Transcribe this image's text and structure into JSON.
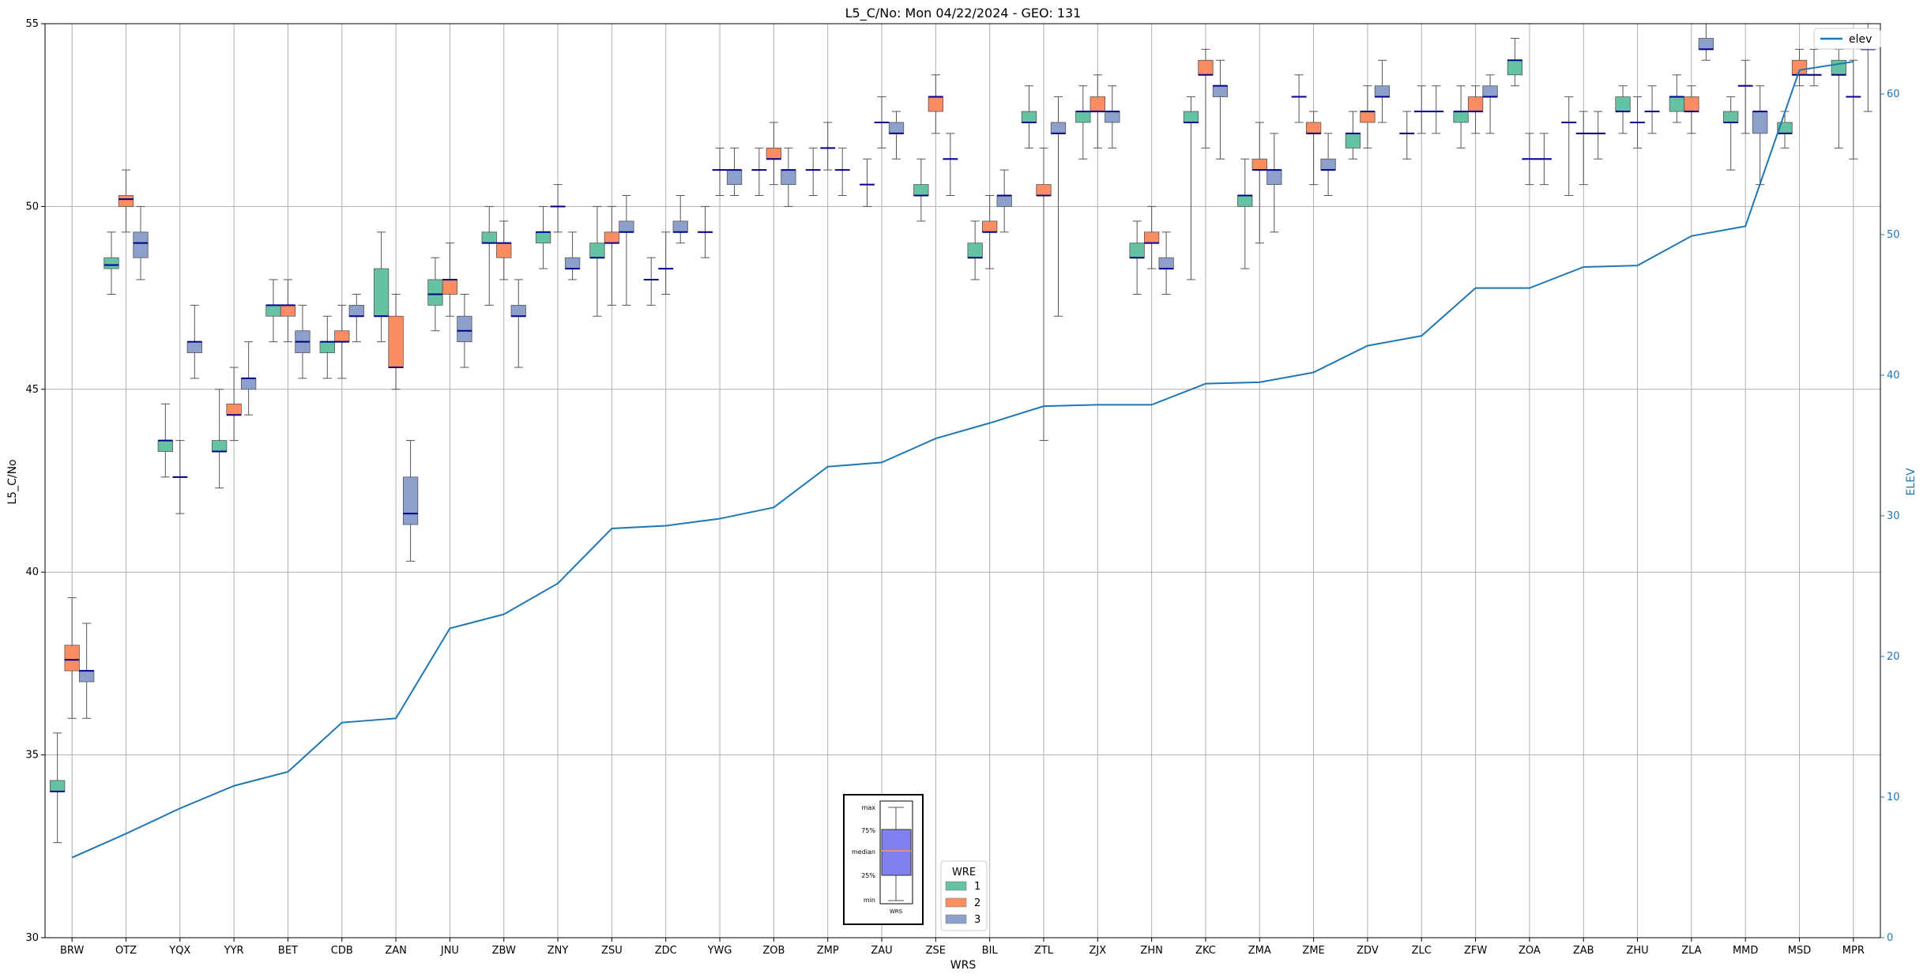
{
  "chart_data": {
    "type": "box",
    "title": "L5_C/No: Mon 04/22/2024 - GEO: 131",
    "xlabel": "WRS",
    "ylabel": "L5_C/No",
    "ylabel_right": "ELEV",
    "ylim": [
      30,
      55
    ],
    "ylim_right": [
      0,
      65
    ],
    "yticks": [
      30,
      35,
      40,
      45,
      50,
      55
    ],
    "yticks_right": [
      0,
      10,
      20,
      30,
      40,
      50,
      60
    ],
    "grid": true,
    "categories": [
      "BRW",
      "OTZ",
      "YQX",
      "YYR",
      "BET",
      "CDB",
      "ZAN",
      "JNU",
      "ZBW",
      "ZNY",
      "ZSU",
      "ZDC",
      "YWG",
      "ZOB",
      "ZMP",
      "ZAU",
      "ZSE",
      "BIL",
      "ZTL",
      "ZJX",
      "ZHN",
      "ZKC",
      "ZMA",
      "ZME",
      "ZDV",
      "ZLC",
      "ZFW",
      "ZOA",
      "ZAB",
      "ZHU",
      "ZLA",
      "MMD",
      "MSD",
      "MPR"
    ],
    "legend": {
      "title": "WRE",
      "placement": "bottom-center",
      "entries": [
        "1",
        "2",
        "3"
      ]
    },
    "colors": {
      "1": "#66c2a5",
      "2": "#fc8d62",
      "3": "#8da0cb",
      "median": "#00008b",
      "elev": "#1f77b4",
      "whisker": "#555555"
    },
    "boxes": [
      {
        "cat": "BRW",
        "wre": 1,
        "min": 32.6,
        "q1": 34.0,
        "median": 34.0,
        "q3": 34.3,
        "max": 35.6
      },
      {
        "cat": "BRW",
        "wre": 2,
        "min": 36.0,
        "q1": 37.3,
        "median": 37.6,
        "q3": 38.0,
        "max": 39.3
      },
      {
        "cat": "BRW",
        "wre": 3,
        "min": 36.0,
        "q1": 37.0,
        "median": 37.3,
        "q3": 37.3,
        "max": 38.6
      },
      {
        "cat": "OTZ",
        "wre": 1,
        "min": 47.6,
        "q1": 48.3,
        "median": 48.4,
        "q3": 48.6,
        "max": 49.3
      },
      {
        "cat": "OTZ",
        "wre": 2,
        "min": 49.3,
        "q1": 50.0,
        "median": 50.2,
        "q3": 50.3,
        "max": 51.0
      },
      {
        "cat": "OTZ",
        "wre": 3,
        "min": 48.0,
        "q1": 48.6,
        "median": 49.0,
        "q3": 49.3,
        "max": 50.0
      },
      {
        "cat": "YQX",
        "wre": 1,
        "min": 42.6,
        "q1": 43.3,
        "median": 43.6,
        "q3": 43.6,
        "max": 44.6
      },
      {
        "cat": "YQX",
        "wre": 2,
        "min": 41.6,
        "q1": 42.6,
        "median": 42.6,
        "q3": 42.6,
        "max": 43.6
      },
      {
        "cat": "YQX",
        "wre": 3,
        "min": 45.3,
        "q1": 46.0,
        "median": 46.3,
        "q3": 46.3,
        "max": 47.3
      },
      {
        "cat": "YYR",
        "wre": 1,
        "min": 42.3,
        "q1": 43.3,
        "median": 43.3,
        "q3": 43.6,
        "max": 45.0
      },
      {
        "cat": "YYR",
        "wre": 2,
        "min": 43.6,
        "q1": 44.3,
        "median": 44.3,
        "q3": 44.6,
        "max": 45.6
      },
      {
        "cat": "YYR",
        "wre": 3,
        "min": 44.3,
        "q1": 45.0,
        "median": 45.3,
        "q3": 45.3,
        "max": 46.3
      },
      {
        "cat": "BET",
        "wre": 1,
        "min": 46.3,
        "q1": 47.0,
        "median": 47.3,
        "q3": 47.3,
        "max": 48.0
      },
      {
        "cat": "BET",
        "wre": 2,
        "min": 46.3,
        "q1": 47.0,
        "median": 47.3,
        "q3": 47.3,
        "max": 48.0
      },
      {
        "cat": "BET",
        "wre": 3,
        "min": 45.3,
        "q1": 46.0,
        "median": 46.3,
        "q3": 46.6,
        "max": 47.3
      },
      {
        "cat": "CDB",
        "wre": 1,
        "min": 45.3,
        "q1": 46.0,
        "median": 46.3,
        "q3": 46.3,
        "max": 47.0
      },
      {
        "cat": "CDB",
        "wre": 2,
        "min": 45.3,
        "q1": 46.3,
        "median": 46.3,
        "q3": 46.6,
        "max": 47.3
      },
      {
        "cat": "CDB",
        "wre": 3,
        "min": 46.3,
        "q1": 47.0,
        "median": 47.0,
        "q3": 47.3,
        "max": 47.6
      },
      {
        "cat": "ZAN",
        "wre": 1,
        "min": 46.3,
        "q1": 47.0,
        "median": 47.0,
        "q3": 48.3,
        "max": 49.3
      },
      {
        "cat": "ZAN",
        "wre": 2,
        "min": 45.0,
        "q1": 45.6,
        "median": 45.6,
        "q3": 47.0,
        "max": 47.6
      },
      {
        "cat": "ZAN",
        "wre": 3,
        "min": 40.3,
        "q1": 41.3,
        "median": 41.6,
        "q3": 42.6,
        "max": 43.6
      },
      {
        "cat": "JNU",
        "wre": 1,
        "min": 46.6,
        "q1": 47.3,
        "median": 47.6,
        "q3": 48.0,
        "max": 48.6
      },
      {
        "cat": "JNU",
        "wre": 2,
        "min": 47.0,
        "q1": 47.6,
        "median": 48.0,
        "q3": 48.0,
        "max": 49.0
      },
      {
        "cat": "JNU",
        "wre": 3,
        "min": 45.6,
        "q1": 46.3,
        "median": 46.6,
        "q3": 47.0,
        "max": 47.6
      },
      {
        "cat": "ZBW",
        "wre": 1,
        "min": 47.3,
        "q1": 49.0,
        "median": 49.0,
        "q3": 49.3,
        "max": 50.0
      },
      {
        "cat": "ZBW",
        "wre": 2,
        "min": 48.0,
        "q1": 48.6,
        "median": 49.0,
        "q3": 49.0,
        "max": 49.6
      },
      {
        "cat": "ZBW",
        "wre": 3,
        "min": 45.6,
        "q1": 47.0,
        "median": 47.0,
        "q3": 47.3,
        "max": 48.0
      },
      {
        "cat": "ZNY",
        "wre": 1,
        "min": 48.3,
        "q1": 49.0,
        "median": 49.3,
        "q3": 49.3,
        "max": 50.0
      },
      {
        "cat": "ZNY",
        "wre": 2,
        "min": 49.3,
        "q1": 50.0,
        "median": 50.0,
        "q3": 50.0,
        "max": 50.6
      },
      {
        "cat": "ZNY",
        "wre": 3,
        "min": 48.0,
        "q1": 48.3,
        "median": 48.3,
        "q3": 48.6,
        "max": 49.3
      },
      {
        "cat": "ZSU",
        "wre": 1,
        "min": 47.0,
        "q1": 48.6,
        "median": 48.6,
        "q3": 49.0,
        "max": 50.0
      },
      {
        "cat": "ZSU",
        "wre": 2,
        "min": 47.3,
        "q1": 49.0,
        "median": 49.0,
        "q3": 49.3,
        "max": 50.0
      },
      {
        "cat": "ZSU",
        "wre": 3,
        "min": 47.3,
        "q1": 49.3,
        "median": 49.3,
        "q3": 49.6,
        "max": 50.3
      },
      {
        "cat": "ZDC",
        "wre": 1,
        "min": 47.3,
        "q1": 48.0,
        "median": 48.0,
        "q3": 48.0,
        "max": 48.6
      },
      {
        "cat": "ZDC",
        "wre": 2,
        "min": 47.6,
        "q1": 48.3,
        "median": 48.3,
        "q3": 48.3,
        "max": 49.3
      },
      {
        "cat": "ZDC",
        "wre": 3,
        "min": 49.0,
        "q1": 49.3,
        "median": 49.3,
        "q3": 49.6,
        "max": 50.3
      },
      {
        "cat": "YWG",
        "wre": 1,
        "min": 48.6,
        "q1": 49.3,
        "median": 49.3,
        "q3": 49.3,
        "max": 50.0
      },
      {
        "cat": "YWG",
        "wre": 2,
        "min": 50.3,
        "q1": 51.0,
        "median": 51.0,
        "q3": 51.0,
        "max": 51.6
      },
      {
        "cat": "YWG",
        "wre": 3,
        "min": 50.3,
        "q1": 50.6,
        "median": 51.0,
        "q3": 51.0,
        "max": 51.6
      },
      {
        "cat": "ZOB",
        "wre": 1,
        "min": 50.3,
        "q1": 51.0,
        "median": 51.0,
        "q3": 51.0,
        "max": 51.6
      },
      {
        "cat": "ZOB",
        "wre": 2,
        "min": 50.6,
        "q1": 51.3,
        "median": 51.3,
        "q3": 51.6,
        "max": 52.3
      },
      {
        "cat": "ZOB",
        "wre": 3,
        "min": 50.0,
        "q1": 50.6,
        "median": 51.0,
        "q3": 51.0,
        "max": 51.6
      },
      {
        "cat": "ZMP",
        "wre": 1,
        "min": 50.3,
        "q1": 51.0,
        "median": 51.0,
        "q3": 51.0,
        "max": 51.6
      },
      {
        "cat": "ZMP",
        "wre": 2,
        "min": 51.0,
        "q1": 51.6,
        "median": 51.6,
        "q3": 51.6,
        "max": 52.3
      },
      {
        "cat": "ZMP",
        "wre": 3,
        "min": 50.3,
        "q1": 51.0,
        "median": 51.0,
        "q3": 51.0,
        "max": 51.6
      },
      {
        "cat": "ZAU",
        "wre": 1,
        "min": 50.0,
        "q1": 50.6,
        "median": 50.6,
        "q3": 50.6,
        "max": 51.3
      },
      {
        "cat": "ZAU",
        "wre": 2,
        "min": 51.6,
        "q1": 52.3,
        "median": 52.3,
        "q3": 52.3,
        "max": 53.0
      },
      {
        "cat": "ZAU",
        "wre": 3,
        "min": 51.3,
        "q1": 52.0,
        "median": 52.0,
        "q3": 52.3,
        "max": 52.6
      },
      {
        "cat": "ZSE",
        "wre": 1,
        "min": 49.6,
        "q1": 50.3,
        "median": 50.3,
        "q3": 50.6,
        "max": 51.3
      },
      {
        "cat": "ZSE",
        "wre": 2,
        "min": 52.0,
        "q1": 52.6,
        "median": 53.0,
        "q3": 53.0,
        "max": 53.6
      },
      {
        "cat": "ZSE",
        "wre": 3,
        "min": 50.3,
        "q1": 51.3,
        "median": 51.3,
        "q3": 51.3,
        "max": 52.0
      },
      {
        "cat": "BIL",
        "wre": 1,
        "min": 48.0,
        "q1": 48.6,
        "median": 48.6,
        "q3": 49.0,
        "max": 49.6
      },
      {
        "cat": "BIL",
        "wre": 2,
        "min": 48.3,
        "q1": 49.3,
        "median": 49.3,
        "q3": 49.6,
        "max": 50.3
      },
      {
        "cat": "BIL",
        "wre": 3,
        "min": 49.3,
        "q1": 50.0,
        "median": 50.3,
        "q3": 50.3,
        "max": 51.0
      },
      {
        "cat": "ZTL",
        "wre": 1,
        "min": 51.6,
        "q1": 52.3,
        "median": 52.3,
        "q3": 52.6,
        "max": 53.3
      },
      {
        "cat": "ZTL",
        "wre": 2,
        "min": 43.6,
        "q1": 50.3,
        "median": 50.3,
        "q3": 50.6,
        "max": 51.6
      },
      {
        "cat": "ZTL",
        "wre": 3,
        "min": 47.0,
        "q1": 52.0,
        "median": 52.0,
        "q3": 52.3,
        "max": 53.0
      },
      {
        "cat": "ZJX",
        "wre": 1,
        "min": 51.3,
        "q1": 52.3,
        "median": 52.6,
        "q3": 52.6,
        "max": 53.3
      },
      {
        "cat": "ZJX",
        "wre": 2,
        "min": 51.6,
        "q1": 52.6,
        "median": 52.6,
        "q3": 53.0,
        "max": 53.6
      },
      {
        "cat": "ZJX",
        "wre": 3,
        "min": 51.6,
        "q1": 52.3,
        "median": 52.6,
        "q3": 52.6,
        "max": 53.3
      },
      {
        "cat": "ZHN",
        "wre": 1,
        "min": 47.6,
        "q1": 48.6,
        "median": 48.6,
        "q3": 49.0,
        "max": 49.6
      },
      {
        "cat": "ZHN",
        "wre": 2,
        "min": 48.3,
        "q1": 49.0,
        "median": 49.0,
        "q3": 49.3,
        "max": 50.0
      },
      {
        "cat": "ZHN",
        "wre": 3,
        "min": 47.6,
        "q1": 48.3,
        "median": 48.3,
        "q3": 48.6,
        "max": 49.3
      },
      {
        "cat": "ZKC",
        "wre": 1,
        "min": 48.0,
        "q1": 52.3,
        "median": 52.3,
        "q3": 52.6,
        "max": 53.0
      },
      {
        "cat": "ZKC",
        "wre": 2,
        "min": 51.6,
        "q1": 53.6,
        "median": 53.6,
        "q3": 54.0,
        "max": 54.3
      },
      {
        "cat": "ZKC",
        "wre": 3,
        "min": 51.3,
        "q1": 53.0,
        "median": 53.3,
        "q3": 53.3,
        "max": 54.0
      },
      {
        "cat": "ZMA",
        "wre": 1,
        "min": 48.3,
        "q1": 50.0,
        "median": 50.3,
        "q3": 50.3,
        "max": 51.3
      },
      {
        "cat": "ZMA",
        "wre": 2,
        "min": 49.0,
        "q1": 51.0,
        "median": 51.0,
        "q3": 51.3,
        "max": 52.3
      },
      {
        "cat": "ZMA",
        "wre": 3,
        "min": 49.3,
        "q1": 50.6,
        "median": 51.0,
        "q3": 51.0,
        "max": 52.0
      },
      {
        "cat": "ZME",
        "wre": 1,
        "min": 52.3,
        "q1": 53.0,
        "median": 53.0,
        "q3": 53.0,
        "max": 53.6
      },
      {
        "cat": "ZME",
        "wre": 2,
        "min": 50.6,
        "q1": 52.0,
        "median": 52.0,
        "q3": 52.3,
        "max": 52.6
      },
      {
        "cat": "ZME",
        "wre": 3,
        "min": 50.3,
        "q1": 51.0,
        "median": 51.0,
        "q3": 51.3,
        "max": 52.0
      },
      {
        "cat": "ZDV",
        "wre": 1,
        "min": 51.3,
        "q1": 51.6,
        "median": 52.0,
        "q3": 52.0,
        "max": 52.6
      },
      {
        "cat": "ZDV",
        "wre": 2,
        "min": 51.6,
        "q1": 52.3,
        "median": 52.6,
        "q3": 52.6,
        "max": 53.3
      },
      {
        "cat": "ZDV",
        "wre": 3,
        "min": 52.3,
        "q1": 53.0,
        "median": 53.0,
        "q3": 53.3,
        "max": 54.0
      },
      {
        "cat": "ZLC",
        "wre": 1,
        "min": 51.3,
        "q1": 52.0,
        "median": 52.0,
        "q3": 52.0,
        "max": 52.6
      },
      {
        "cat": "ZLC",
        "wre": 2,
        "min": 52.0,
        "q1": 52.6,
        "median": 52.6,
        "q3": 52.6,
        "max": 53.3
      },
      {
        "cat": "ZLC",
        "wre": 3,
        "min": 52.0,
        "q1": 52.6,
        "median": 52.6,
        "q3": 52.6,
        "max": 53.3
      },
      {
        "cat": "ZFW",
        "wre": 1,
        "min": 51.6,
        "q1": 52.3,
        "median": 52.6,
        "q3": 52.6,
        "max": 53.3
      },
      {
        "cat": "ZFW",
        "wre": 2,
        "min": 52.0,
        "q1": 52.6,
        "median": 52.6,
        "q3": 53.0,
        "max": 53.3
      },
      {
        "cat": "ZFW",
        "wre": 3,
        "min": 52.0,
        "q1": 53.0,
        "median": 53.0,
        "q3": 53.3,
        "max": 53.6
      },
      {
        "cat": "ZOA",
        "wre": 1,
        "min": 53.3,
        "q1": 53.6,
        "median": 54.0,
        "q3": 54.0,
        "max": 54.6
      },
      {
        "cat": "ZOA",
        "wre": 2,
        "min": 50.6,
        "q1": 51.3,
        "median": 51.3,
        "q3": 51.3,
        "max": 52.0
      },
      {
        "cat": "ZOA",
        "wre": 3,
        "min": 50.6,
        "q1": 51.3,
        "median": 51.3,
        "q3": 51.3,
        "max": 52.0
      },
      {
        "cat": "ZAB",
        "wre": 1,
        "min": 50.3,
        "q1": 52.3,
        "median": 52.3,
        "q3": 52.3,
        "max": 53.0
      },
      {
        "cat": "ZAB",
        "wre": 2,
        "min": 50.6,
        "q1": 52.0,
        "median": 52.0,
        "q3": 52.0,
        "max": 52.6
      },
      {
        "cat": "ZAB",
        "wre": 3,
        "min": 51.3,
        "q1": 52.0,
        "median": 52.0,
        "q3": 52.0,
        "max": 52.6
      },
      {
        "cat": "ZHU",
        "wre": 1,
        "min": 52.0,
        "q1": 52.6,
        "median": 52.6,
        "q3": 53.0,
        "max": 53.3
      },
      {
        "cat": "ZHU",
        "wre": 2,
        "min": 51.6,
        "q1": 52.3,
        "median": 52.3,
        "q3": 52.3,
        "max": 53.0
      },
      {
        "cat": "ZHU",
        "wre": 3,
        "min": 52.0,
        "q1": 52.6,
        "median": 52.6,
        "q3": 52.6,
        "max": 53.3
      },
      {
        "cat": "ZLA",
        "wre": 1,
        "min": 52.3,
        "q1": 52.6,
        "median": 53.0,
        "q3": 53.0,
        "max": 53.6
      },
      {
        "cat": "ZLA",
        "wre": 2,
        "min": 52.0,
        "q1": 52.6,
        "median": 52.6,
        "q3": 53.0,
        "max": 53.3
      },
      {
        "cat": "ZLA",
        "wre": 3,
        "min": 54.0,
        "q1": 54.3,
        "median": 54.3,
        "q3": 54.6,
        "max": 55.0
      },
      {
        "cat": "MMD",
        "wre": 1,
        "min": 51.0,
        "q1": 52.3,
        "median": 52.3,
        "q3": 52.6,
        "max": 53.0
      },
      {
        "cat": "MMD",
        "wre": 2,
        "min": 52.0,
        "q1": 53.3,
        "median": 53.3,
        "q3": 53.3,
        "max": 54.0
      },
      {
        "cat": "MMD",
        "wre": 3,
        "min": 50.6,
        "q1": 52.0,
        "median": 52.6,
        "q3": 52.6,
        "max": 53.3
      },
      {
        "cat": "MSD",
        "wre": 1,
        "min": 51.6,
        "q1": 52.0,
        "median": 52.0,
        "q3": 52.3,
        "max": 52.6
      },
      {
        "cat": "MSD",
        "wre": 2,
        "min": 53.3,
        "q1": 53.6,
        "median": 53.6,
        "q3": 54.0,
        "max": 54.3
      },
      {
        "cat": "MSD",
        "wre": 3,
        "min": 53.3,
        "q1": 53.6,
        "median": 53.6,
        "q3": 53.6,
        "max": 54.3
      },
      {
        "cat": "MPR",
        "wre": 1,
        "min": 51.6,
        "q1": 53.6,
        "median": 53.6,
        "q3": 54.0,
        "max": 54.3
      },
      {
        "cat": "MPR",
        "wre": 2,
        "min": 51.3,
        "q1": 53.0,
        "median": 53.0,
        "q3": 53.0,
        "max": 54.0
      },
      {
        "cat": "MPR",
        "wre": 3,
        "min": 52.6,
        "q1": 54.3,
        "median": 54.3,
        "q3": 54.6,
        "max": 55.0
      }
    ],
    "series": [
      {
        "name": "elev",
        "axis": "right",
        "x": [
          "BRW",
          "OTZ",
          "YQX",
          "YYR",
          "BET",
          "CDB",
          "ZAN",
          "JNU",
          "ZBW",
          "ZNY",
          "ZSU",
          "ZDC",
          "YWG",
          "ZOB",
          "ZMP",
          "ZAU",
          "ZSE",
          "BIL",
          "ZTL",
          "ZJX",
          "ZHN",
          "ZKC",
          "ZMA",
          "ZME",
          "ZDV",
          "ZLC",
          "ZFW",
          "ZOA",
          "ZAB",
          "ZHU",
          "ZLA",
          "MMD",
          "MSD",
          "MPR"
        ],
        "values": [
          5.7,
          7.4,
          9.2,
          10.8,
          11.8,
          15.3,
          15.6,
          22.0,
          23.0,
          25.2,
          29.1,
          29.3,
          29.8,
          30.6,
          33.5,
          33.8,
          35.5,
          36.6,
          37.8,
          37.9,
          37.9,
          39.4,
          39.5,
          40.2,
          42.1,
          42.8,
          46.2,
          46.2,
          47.7,
          47.8,
          49.9,
          50.6,
          61.7,
          62.3
        ]
      }
    ],
    "inset": {
      "labels": [
        "max",
        "75%",
        "median",
        "25%",
        "min"
      ],
      "xlabel": "WRS"
    }
  }
}
